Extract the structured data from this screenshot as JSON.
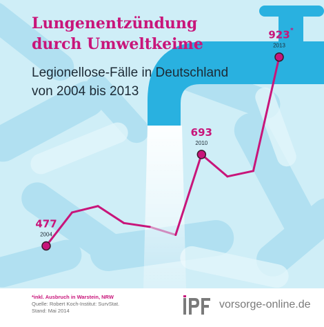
{
  "title": {
    "line1": "Lungenentzündung",
    "line2": "durch Umweltkeime"
  },
  "subtitle": {
    "line1": "Legionellose-Fälle in Deutschland",
    "line2": "von 2004 bis 2013"
  },
  "chart_data": {
    "type": "line",
    "title": "Lungenentzündung durch Umweltkeime",
    "subtitle": "Legionellose-Fälle in Deutschland von 2004 bis 2013",
    "x": [
      2004,
      2005,
      2006,
      2007,
      2008,
      2009,
      2010,
      2011,
      2012,
      2013
    ],
    "values": [
      477,
      556,
      571,
      531,
      522,
      503,
      693,
      641,
      654,
      923
    ],
    "ylim": [
      380,
      960
    ],
    "grid": false,
    "legend": "none",
    "highlighted": [
      {
        "year": "2004",
        "value": "477"
      },
      {
        "year": "2010",
        "value": "693"
      },
      {
        "year": "2013",
        "value": "923"
      }
    ],
    "asterisk": "*",
    "line_color": "#c8157a"
  },
  "footer": {
    "footnote": "*inkl. Ausbruch in Warstein, NRW",
    "source": "Quelle: Robert Koch-Institut: SurvStat.",
    "date": "Stand: Mai 2014",
    "site": "vorsorge-online.de"
  },
  "colors": {
    "accent": "#c8157a",
    "faucet": "#29b1e0",
    "background": "#cfeef7"
  },
  "icons": {
    "logo": "ipf-logo-icon",
    "faucet": "water-faucet-icon"
  }
}
